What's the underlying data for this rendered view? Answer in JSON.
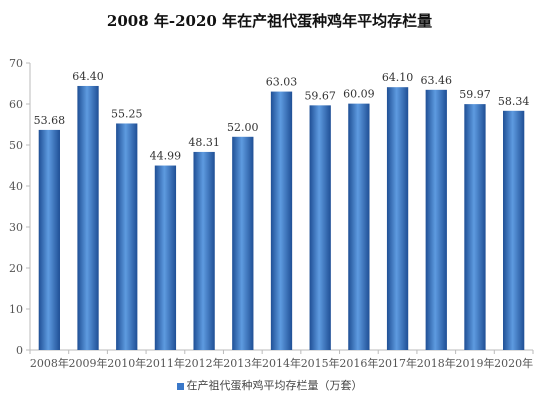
{
  "chart_data": {
    "type": "bar",
    "title": "2008 年-2020 年在产祖代蛋种鸡年平均存栏量",
    "categories": [
      "2008年",
      "2009年",
      "2010年",
      "2011年",
      "2012年",
      "2013年",
      "2014年",
      "2015年",
      "2016年",
      "2017年",
      "2018年",
      "2019年",
      "2020年"
    ],
    "series": [
      {
        "name": "在产祖代蛋种鸡平均存栏量（万套）",
        "values": [
          53.68,
          64.4,
          55.25,
          44.99,
          48.31,
          52.0,
          63.03,
          59.67,
          60.09,
          64.1,
          63.46,
          59.97,
          58.34
        ]
      }
    ],
    "data_labels": [
      "53.68",
      "64.40",
      "55.25",
      "44.99",
      "48.31",
      "52.00",
      "63.03",
      "59.67",
      "60.09",
      "64.10",
      "63.46",
      "59.97",
      "58.34"
    ],
    "ylim": [
      0,
      70
    ],
    "yticks": [
      0,
      10,
      20,
      30,
      40,
      50,
      60,
      70
    ],
    "grid": false,
    "legend_position": "bottom",
    "colors": {
      "bar": "#3a78c9",
      "bar_light": "#5e9be0",
      "bar_dark": "#1f4f95"
    }
  }
}
